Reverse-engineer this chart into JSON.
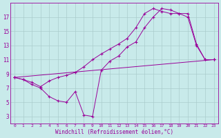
{
  "xlabel": "Windchill (Refroidissement éolien,°C)",
  "bg_color": "#c8eaea",
  "line_color": "#990099",
  "grid_color": "#aacccc",
  "line1_x": [
    0,
    1,
    2,
    3,
    4,
    5,
    6,
    7,
    8,
    9,
    10,
    11,
    12,
    13,
    14,
    15,
    16,
    17,
    18,
    19,
    20,
    21,
    22,
    23
  ],
  "line1_y": [
    8.5,
    8.2,
    7.8,
    7.2,
    8.0,
    8.5,
    8.8,
    9.2,
    10.0,
    11.0,
    11.8,
    12.5,
    13.2,
    14.0,
    15.5,
    17.5,
    18.2,
    17.8,
    17.5,
    17.5,
    17.5,
    13.2,
    11.0,
    11.0
  ],
  "line2_x": [
    0,
    1,
    2,
    3,
    4,
    5,
    6,
    7,
    8,
    9,
    10,
    11,
    12,
    13,
    14,
    15,
    16,
    17,
    18,
    19,
    20,
    21,
    22,
    23
  ],
  "line2_y": [
    8.5,
    8.2,
    7.5,
    7.0,
    5.8,
    5.2,
    5.0,
    6.5,
    3.2,
    3.0,
    9.5,
    10.8,
    11.5,
    12.8,
    13.5,
    15.5,
    17.0,
    18.2,
    18.0,
    17.5,
    17.0,
    13.0,
    11.0,
    11.0
  ],
  "line3_x": [
    0,
    23
  ],
  "line3_y": [
    8.5,
    11.0
  ],
  "xlim": [
    -0.5,
    23.5
  ],
  "ylim": [
    2.0,
    19.0
  ],
  "xticks": [
    0,
    1,
    2,
    3,
    4,
    5,
    6,
    7,
    8,
    9,
    10,
    11,
    12,
    13,
    14,
    15,
    16,
    17,
    18,
    19,
    20,
    21,
    22,
    23
  ],
  "yticks": [
    3,
    5,
    7,
    9,
    11,
    13,
    15,
    17
  ],
  "markersize": 2.5
}
